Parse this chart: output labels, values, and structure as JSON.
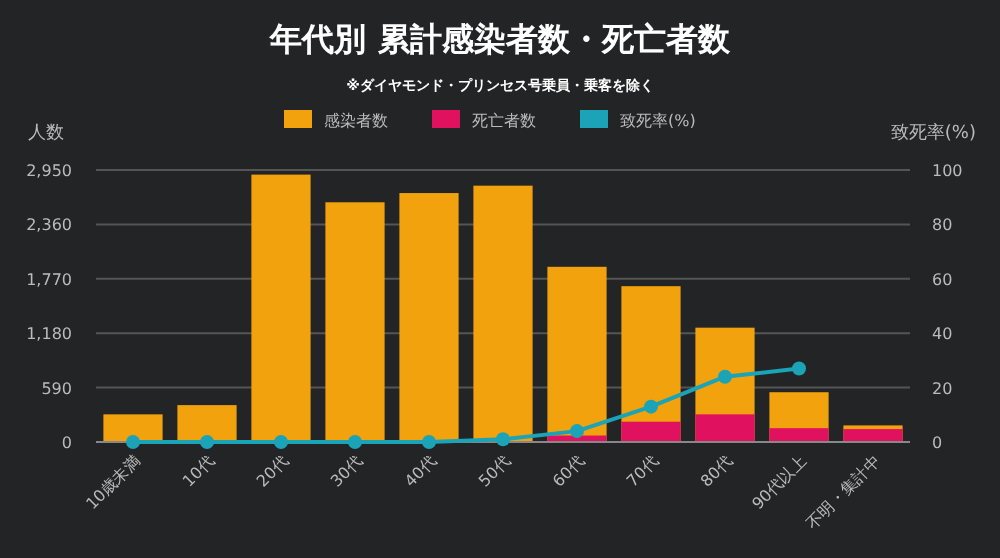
{
  "chart_data": {
    "type": "bar",
    "title": "年代別 累計感染者数・死亡者数",
    "subtitle": "※ダイヤモンド・プリンセス号乗員・乗客を除く",
    "ylabel": "人数",
    "y2label": "致死率(%)",
    "categories": [
      "10歳未満",
      "10代",
      "20代",
      "30代",
      "40代",
      "50代",
      "60代",
      "70代",
      "80代",
      "90代以上",
      "不明・集計中"
    ],
    "series": [
      {
        "name": "感染者数",
        "color": "#f2a20c",
        "values": [
          300,
          400,
          2900,
          2600,
          2700,
          2780,
          1900,
          1690,
          1240,
          540,
          180
        ]
      },
      {
        "name": "死亡者数",
        "color": "#e0115f",
        "values": [
          0,
          0,
          0,
          0,
          0,
          null,
          70,
          220,
          300,
          150,
          140
        ]
      },
      {
        "name": "致死率(%)",
        "type": "line",
        "axis": "y2",
        "color": "#1ba3b8",
        "values": [
          0,
          0,
          0,
          0,
          0,
          1,
          4,
          13,
          24,
          27,
          null
        ]
      }
    ],
    "ylim": [
      0,
      2950
    ],
    "yticks": [
      0,
      {
        "value": 590,
        "label": "590"
      },
      {
        "value": 1180,
        "label": "1,180"
      },
      {
        "value": 1770,
        "label": "1,770"
      },
      {
        "value": 2360,
        "label": "2,360"
      },
      {
        "value": 2950,
        "label": "2,950"
      }
    ],
    "y2lim": [
      0,
      100
    ],
    "y2ticks": [
      0,
      20,
      40,
      60,
      80,
      100
    ],
    "grid": "y",
    "legend": "top",
    "marker": "circle",
    "line_style": "solid"
  }
}
